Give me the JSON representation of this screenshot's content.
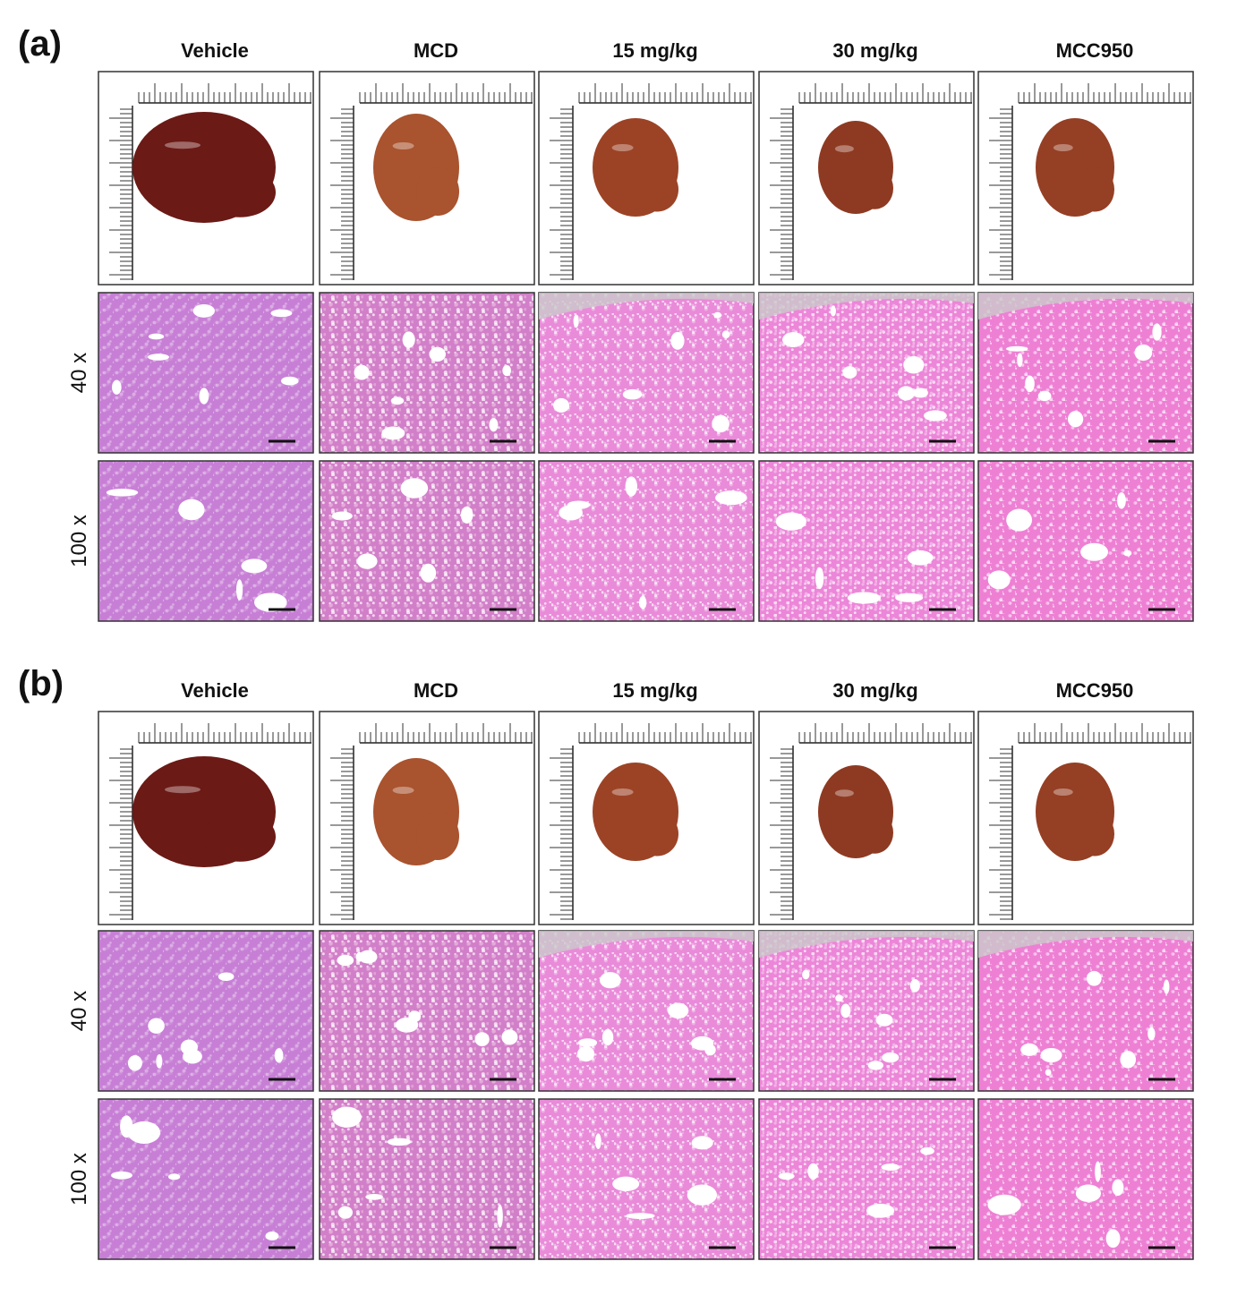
{
  "panels": [
    {
      "label": "(a)",
      "columns": [
        "Vehicle",
        "MCD",
        "15 mg/kg",
        "30 mg/kg",
        "MCC950"
      ],
      "rows": [
        "40 x",
        "100 x"
      ]
    },
    {
      "label": "(b)",
      "columns": [
        "Vehicle",
        "MCD",
        "15 mg/kg",
        "30 mg/kg",
        "MCC950"
      ],
      "rows": [
        "40 x",
        "100 x"
      ]
    }
  ]
}
